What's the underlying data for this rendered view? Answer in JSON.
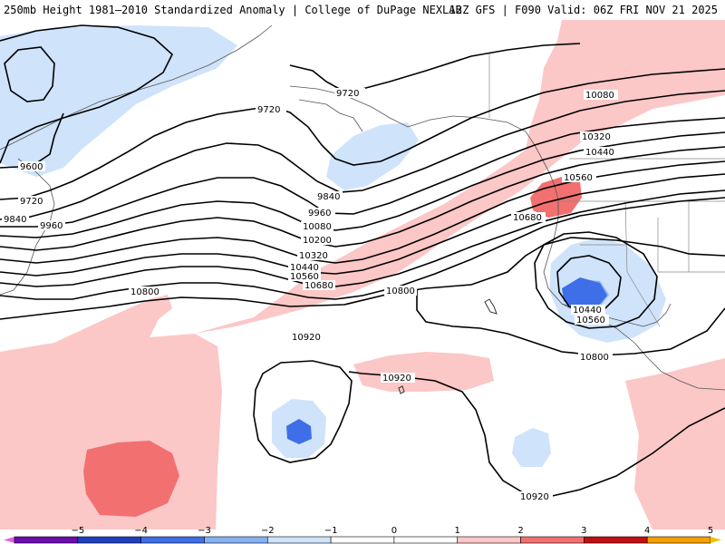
{
  "header": {
    "title_left": "250mb Height 1981–2010 Standardized Anomaly | College of DuPage NEXLAB",
    "title_right": "12Z GFS | F090 Valid: 06Z FRI NOV 21 2025"
  },
  "contour_labels": {
    "c9720a": "9720",
    "c9720b": "9720",
    "c9720c": "9720",
    "c9600": "9600",
    "c9840a": "9840",
    "c9840b": "9840",
    "c9960a": "9960",
    "c9960b": "9960",
    "c10080a": "10080",
    "c10080b": "10080",
    "c10200": "10200",
    "c10320a": "10320",
    "c10320b": "10320",
    "c10440a": "10440",
    "c10440b": "10440",
    "c10440c": "10440",
    "c10560a": "10560",
    "c10560b": "10560",
    "c10560c": "10560",
    "c10680a": "10680",
    "c10680b": "10680",
    "c10800a": "10800",
    "c10800b": "10800",
    "c10800c": "10800",
    "c10920a": "10920",
    "c10920b": "10920",
    "c10920c": "10920"
  },
  "legend": {
    "ticks": [
      "−5",
      "−4",
      "−3",
      "−2",
      "−1",
      "0",
      "1",
      "2",
      "3",
      "4",
      "5"
    ],
    "colors": [
      "#6a0dad",
      "#1f3fbf",
      "#3f6fe8",
      "#86b2f2",
      "#cfe3fb",
      "#ffffff",
      "#ffffff",
      "#fbc7c7",
      "#f27070",
      "#c01010",
      "#f5a000"
    ],
    "cap_low": "#e060e0",
    "cap_high": "#f0c000"
  }
}
